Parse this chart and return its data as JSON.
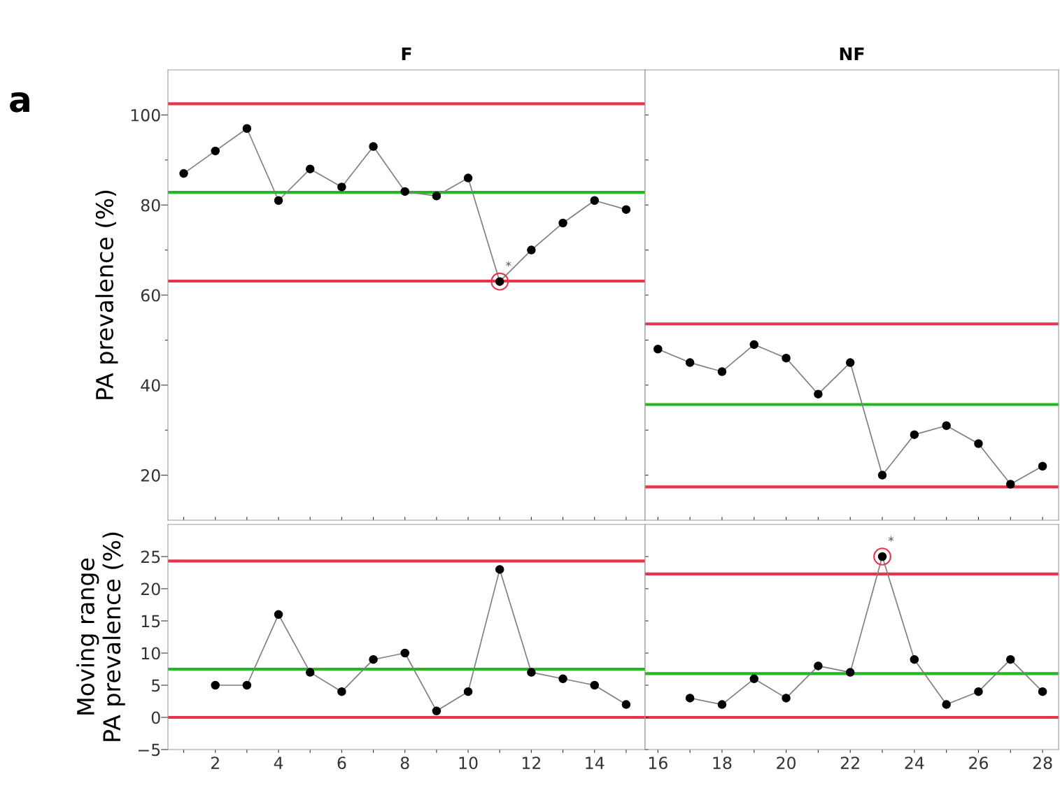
{
  "chart_data": [
    {
      "type": "line",
      "title": "F",
      "ylabel": "PA prevalence (%)",
      "annotations": [
        "a",
        {
          "text": "*",
          "x": 11,
          "y": 63
        }
      ],
      "x": [
        1,
        2,
        3,
        4,
        5,
        6,
        7,
        8,
        9,
        10,
        11,
        12,
        13,
        14,
        15
      ],
      "series": [
        {
          "color": "#000000",
          "values": [
            87,
            92,
            97,
            81,
            88,
            84,
            93,
            83,
            82,
            86,
            63,
            70,
            76,
            81,
            79
          ]
        }
      ],
      "xlim": [
        0.5,
        15.6
      ],
      "ylim": [
        10,
        110
      ],
      "yticks": [
        20,
        {
          "value": 30,
          "label": null
        },
        40,
        {
          "value": 50,
          "label": null
        },
        60,
        {
          "value": 70,
          "label": null
        },
        80,
        {
          "value": 90,
          "label": null
        },
        100
      ],
      "xticks": [
        {
          "value": 1,
          "label": null
        },
        2,
        {
          "value": 3,
          "label": null
        },
        4,
        {
          "value": 5,
          "label": null
        },
        6,
        {
          "value": 7,
          "label": null
        },
        8,
        {
          "value": 9,
          "label": null
        },
        10,
        {
          "value": 11,
          "label": null
        },
        12,
        {
          "value": 13,
          "label": null
        },
        14,
        {
          "value": 15,
          "label": null
        }
      ],
      "ref_lines": [
        {
          "axis": "y",
          "value": 102.5,
          "color": "#e8344a"
        },
        {
          "axis": "y",
          "value": 82.8,
          "color": "#22b822"
        },
        {
          "axis": "y",
          "value": 63.1,
          "color": "#e8344a"
        }
      ],
      "marker": "circle",
      "tick_labels": "y",
      "grid": false,
      "legend": false
    },
    {
      "type": "line",
      "title": "NF",
      "x": [
        16,
        17,
        18,
        19,
        20,
        21,
        22,
        23,
        24,
        25,
        26,
        27,
        28
      ],
      "series": [
        {
          "color": "#000000",
          "values": [
            48,
            45,
            43,
            49,
            46,
            38,
            45,
            20,
            29,
            31,
            27,
            18,
            22
          ]
        }
      ],
      "xlim": [
        15.6,
        28.5
      ],
      "ylim": [
        10,
        110
      ],
      "yticks": [
        20,
        {
          "value": 30,
          "label": null
        },
        40,
        {
          "value": 50,
          "label": null
        },
        60,
        {
          "value": 70,
          "label": null
        },
        80,
        {
          "value": 90,
          "label": null
        },
        100
      ],
      "xticks": [
        16,
        {
          "value": 17,
          "label": null
        },
        18,
        {
          "value": 19,
          "label": null
        },
        20,
        {
          "value": 21,
          "label": null
        },
        22,
        {
          "value": 23,
          "label": null
        },
        24,
        {
          "value": 25,
          "label": null
        },
        26,
        {
          "value": 27,
          "label": null
        },
        28
      ],
      "ref_lines": [
        {
          "axis": "y",
          "value": 53.6,
          "color": "#e8344a"
        },
        {
          "axis": "y",
          "value": 35.7,
          "color": "#22b822"
        },
        {
          "axis": "y",
          "value": 17.4,
          "color": "#e8344a"
        }
      ],
      "marker": "circle",
      "tick_labels": false,
      "grid": false,
      "legend": false
    },
    {
      "type": "line",
      "ylabel": "Moving range\nPA prevalence (%)",
      "x": [
        2,
        3,
        4,
        5,
        6,
        7,
        8,
        9,
        10,
        11,
        12,
        13,
        14,
        15
      ],
      "series": [
        {
          "color": "#000000",
          "values": [
            5,
            5,
            16,
            7,
            4,
            9,
            10,
            1,
            4,
            23,
            7,
            6,
            5,
            2
          ]
        }
      ],
      "xlim": [
        0.5,
        15.6
      ],
      "ylim": [
        -5,
        30
      ],
      "yticks": [
        -5,
        0,
        5,
        10,
        15,
        20,
        25
      ],
      "xticks": [
        {
          "value": 1,
          "label": null
        },
        2,
        {
          "value": 3,
          "label": null
        },
        4,
        {
          "value": 5,
          "label": null
        },
        6,
        {
          "value": 7,
          "label": null
        },
        8,
        {
          "value": 9,
          "label": null
        },
        10,
        {
          "value": 11,
          "label": null
        },
        12,
        {
          "value": 13,
          "label": null
        },
        14,
        {
          "value": 15,
          "label": null
        }
      ],
      "ref_lines": [
        {
          "axis": "y",
          "value": 24.3,
          "color": "#e8344a"
        },
        {
          "axis": "y",
          "value": 7.5,
          "color": "#22b822"
        },
        {
          "axis": "y",
          "value": 0,
          "color": "#e8344a"
        }
      ],
      "marker": "circle",
      "grid": false,
      "legend": false
    },
    {
      "type": "line",
      "annotations": [
        {
          "text": "*",
          "x": 23,
          "y": 25
        }
      ],
      "x": [
        17,
        18,
        19,
        20,
        21,
        22,
        23,
        24,
        25,
        26,
        27,
        28
      ],
      "series": [
        {
          "color": "#000000",
          "values": [
            3,
            2,
            6,
            3,
            8,
            7,
            25,
            9,
            2,
            4,
            9,
            4
          ]
        }
      ],
      "xlim": [
        15.6,
        28.5
      ],
      "ylim": [
        -5,
        30
      ],
      "yticks": [
        -5,
        0,
        5,
        10,
        15,
        20,
        25
      ],
      "xticks": [
        16,
        {
          "value": 17,
          "label": null
        },
        18,
        {
          "value": 19,
          "label": null
        },
        20,
        {
          "value": 21,
          "label": null
        },
        22,
        {
          "value": 23,
          "label": null
        },
        24,
        {
          "value": 25,
          "label": null
        },
        26,
        {
          "value": 27,
          "label": null
        },
        28
      ],
      "ref_lines": [
        {
          "axis": "y",
          "value": 22.3,
          "color": "#e8344a"
        },
        {
          "axis": "y",
          "value": 6.8,
          "color": "#22b822"
        },
        {
          "axis": "y",
          "value": 0,
          "color": "#e8344a"
        }
      ],
      "marker": "circle",
      "tick_labels": "x",
      "grid": false,
      "legend": false
    }
  ]
}
